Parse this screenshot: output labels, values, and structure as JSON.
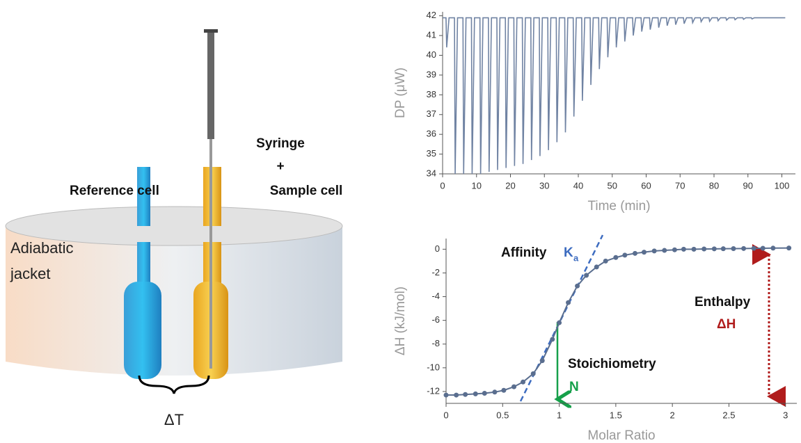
{
  "diagram": {
    "reference": "Reference cell",
    "syringe": "Syringe",
    "plus": "+",
    "sample": "Sample cell",
    "adiabatic": "Adiabatic",
    "jacket": "jacket",
    "delta_t": "ΔT"
  },
  "chart_data": [
    {
      "type": "line",
      "xlabel": "Time (min)",
      "ylabel": "DP (μW)",
      "color": "#7083a3",
      "xlim": [
        0,
        104
      ],
      "ylim": [
        34,
        42.2
      ],
      "xticks": [
        0,
        10,
        20,
        30,
        40,
        50,
        60,
        70,
        80,
        90,
        100
      ],
      "yticks": [
        34,
        35,
        36,
        37,
        38,
        39,
        40,
        41,
        42
      ],
      "x": [
        0,
        1,
        1.2,
        1.9,
        3.5,
        3.7,
        4.4,
        6,
        6.2,
        6.9,
        8.5,
        8.7,
        9.4,
        11,
        11.2,
        11.9,
        13.5,
        13.7,
        14.4,
        16,
        16.2,
        16.9,
        18.5,
        18.7,
        19.4,
        21,
        21.2,
        21.9,
        23.5,
        23.7,
        24.4,
        26,
        26.2,
        26.9,
        28.5,
        28.7,
        29.4,
        31,
        31.2,
        31.9,
        33.5,
        33.7,
        34.4,
        36,
        36.2,
        36.9,
        38.5,
        38.7,
        39.4,
        41,
        41.2,
        41.9,
        43.5,
        43.7,
        44.4,
        46,
        46.2,
        46.9,
        48.5,
        48.7,
        49.4,
        51,
        51.2,
        51.9,
        53.5,
        53.7,
        54.4,
        56,
        56.2,
        56.9,
        58.5,
        58.7,
        59.4,
        61,
        61.2,
        61.9,
        63.5,
        63.7,
        64.4,
        66,
        66.2,
        66.9,
        68.5,
        68.7,
        69.4,
        71,
        71.2,
        71.9,
        73.5,
        73.7,
        74.4,
        76,
        76.2,
        76.9,
        78.5,
        78.7,
        79.4,
        81,
        81.2,
        81.9,
        83.5,
        83.7,
        84.4,
        86,
        86.2,
        86.9,
        88.5,
        88.7,
        89.4,
        91,
        91.2,
        91.9,
        101
      ],
      "values": [
        41.9,
        41.9,
        40.4,
        41.9,
        41.9,
        34,
        41.9,
        41.9,
        34,
        41.9,
        41.9,
        34,
        41.9,
        41.9,
        34,
        41.9,
        41.9,
        34.1,
        41.9,
        41.9,
        34.2,
        41.9,
        41.9,
        34.3,
        41.9,
        41.9,
        34.4,
        41.9,
        41.9,
        34.5,
        41.9,
        41.9,
        34.7,
        41.9,
        41.9,
        34.9,
        41.9,
        41.9,
        35.2,
        41.9,
        41.9,
        35.6,
        41.9,
        41.9,
        36.1,
        41.9,
        41.9,
        36.9,
        41.9,
        41.9,
        37.7,
        41.9,
        41.9,
        38.5,
        41.9,
        41.9,
        39.3,
        41.9,
        41.9,
        39.9,
        41.9,
        41.9,
        40.4,
        41.9,
        41.9,
        40.7,
        41.9,
        41.9,
        41.0,
        41.9,
        41.9,
        41.2,
        41.9,
        41.9,
        41.3,
        41.9,
        41.9,
        41.4,
        41.9,
        41.9,
        41.5,
        41.9,
        41.9,
        41.55,
        41.9,
        41.9,
        41.6,
        41.9,
        41.9,
        41.65,
        41.9,
        41.9,
        41.7,
        41.9,
        41.9,
        41.72,
        41.9,
        41.9,
        41.75,
        41.9,
        41.9,
        41.78,
        41.9,
        41.9,
        41.8,
        41.9,
        41.9,
        41.82,
        41.9,
        41.9,
        41.84,
        41.9,
        41.9
      ]
    },
    {
      "type": "scatter",
      "xlabel": "Molar Ratio",
      "ylabel": "ΔH (kJ/mol)",
      "color": "#5a6e8f",
      "line": true,
      "xlim": [
        0,
        3.1
      ],
      "ylim": [
        -13,
        0.9
      ],
      "xticks": [
        0,
        0.5,
        1,
        1.5,
        2,
        2.5,
        3
      ],
      "yticks": [
        0,
        -2,
        -4,
        -6,
        -8,
        -10,
        -12
      ],
      "x": [
        0,
        0.09,
        0.17,
        0.26,
        0.34,
        0.43,
        0.51,
        0.6,
        0.68,
        0.77,
        0.85,
        0.94,
        1.0,
        1.08,
        1.16,
        1.24,
        1.33,
        1.41,
        1.5,
        1.58,
        1.67,
        1.75,
        1.84,
        1.93,
        2.02,
        2.1,
        2.19,
        2.28,
        2.37,
        2.45,
        2.54,
        2.63,
        2.72,
        2.8,
        2.89,
        3.03
      ],
      "values": [
        -12.3,
        -12.3,
        -12.25,
        -12.2,
        -12.15,
        -12.05,
        -11.9,
        -11.6,
        -11.2,
        -10.5,
        -9.4,
        -7.6,
        -6.2,
        -4.5,
        -3.1,
        -2.2,
        -1.5,
        -1.0,
        -0.7,
        -0.5,
        -0.35,
        -0.25,
        -0.15,
        -0.1,
        -0.05,
        0,
        0,
        0.02,
        0.03,
        0.04,
        0.05,
        0.06,
        0.07,
        0.08,
        0.09,
        0.1
      ],
      "annotations": {
        "affinity": "Affinity",
        "k": "K",
        "k_sub": "a",
        "stoichiometry": "Stoichiometry",
        "n": "N",
        "enthalpy": "Enthalpy",
        "dh": "ΔH"
      }
    }
  ]
}
